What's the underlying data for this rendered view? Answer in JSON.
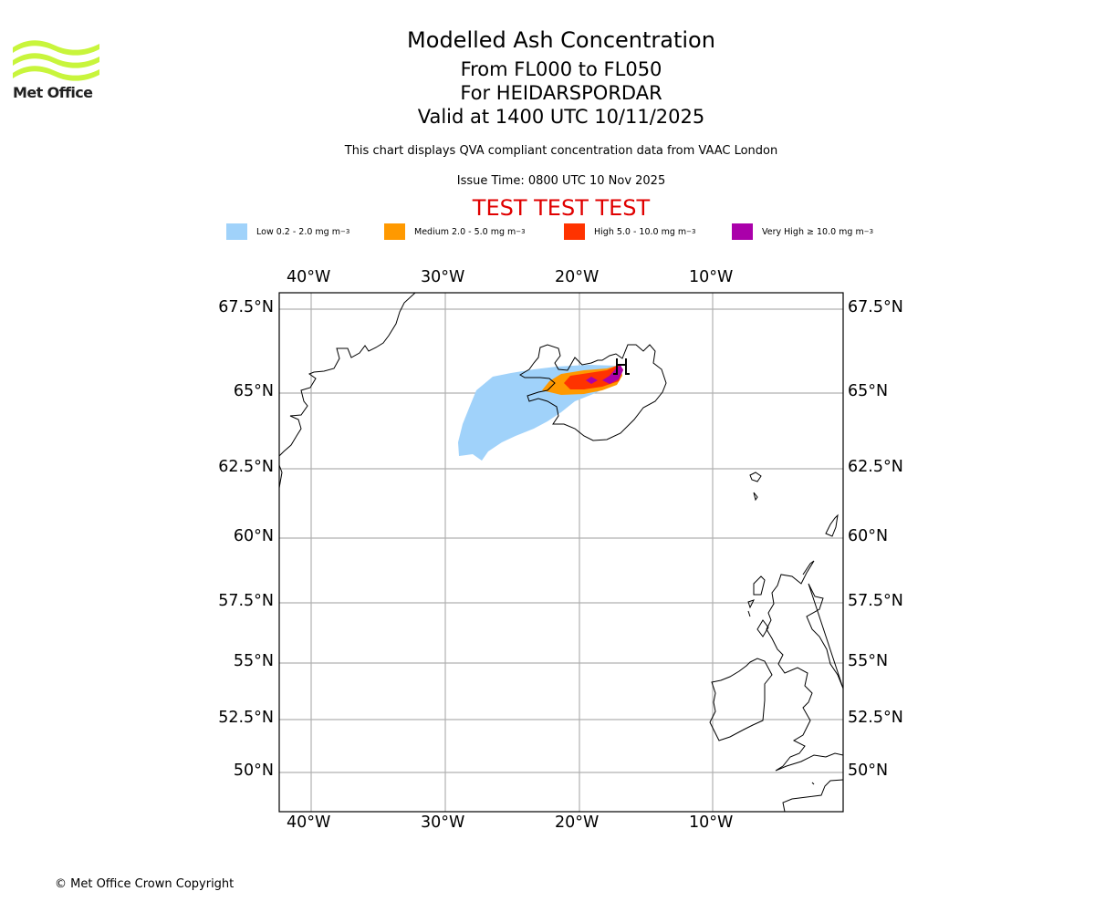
{
  "logo": {
    "name": "Met Office",
    "icon": "met-office-waves-logo",
    "color": "#c8f53c"
  },
  "header": {
    "title": "Modelled Ash Concentration",
    "levels": "From FL000 to FL050",
    "volcano": "For HEIDARSPORDAR",
    "valid": "Valid at 1400 UTC 10/11/2025",
    "description": "This chart displays QVA compliant concentration data from VAAC London",
    "issue_time": "Issue Time: 0800 UTC 10 Nov 2025",
    "test_banner": "TEST TEST TEST"
  },
  "legend": [
    {
      "label": "Low 0.2 - 2.0 mg m",
      "sup": "−3",
      "color": "#a0d2fa"
    },
    {
      "label": "Medium 2.0 - 5.0 mg m",
      "sup": "−3",
      "color": "#ff9900"
    },
    {
      "label": "High 5.0 - 10.0 mg m",
      "sup": "−3",
      "color": "#ff3300"
    },
    {
      "label": "Very High ≥ 10.0 mg m",
      "sup": "−3",
      "color": "#aa00aa"
    }
  ],
  "map": {
    "lon_ticks": [
      "40°W",
      "30°W",
      "20°W",
      "10°W"
    ],
    "lat_ticks": [
      "67.5°N",
      "65°N",
      "62.5°N",
      "60°N",
      "57.5°N",
      "55°N",
      "52.5°N",
      "50°N"
    ],
    "gridline_color": "#b0b0b0",
    "volcano_marker": "volcano-icon"
  },
  "footer": {
    "copyright": "© Met Office Crown Copyright"
  }
}
